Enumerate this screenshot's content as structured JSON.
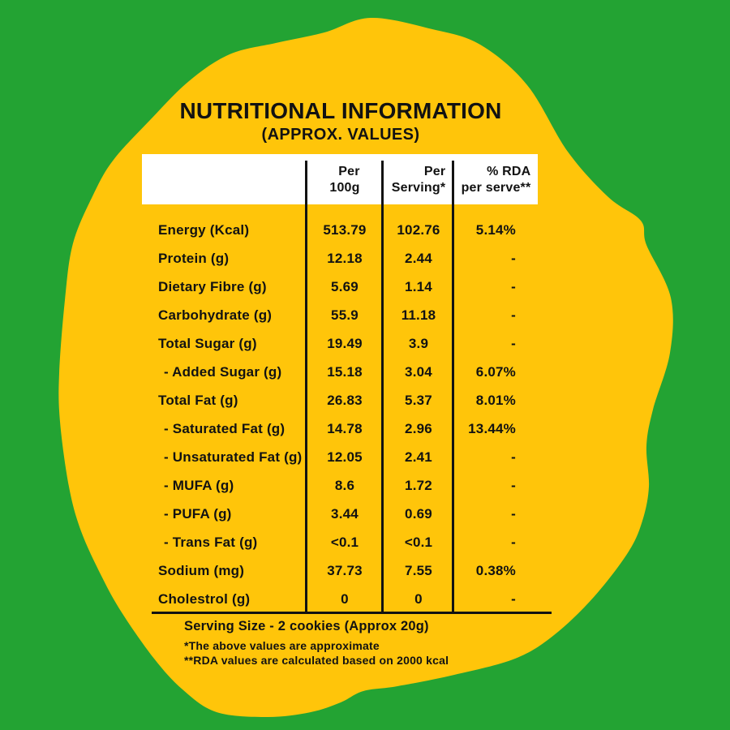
{
  "title": "NUTRITIONAL INFORMATION",
  "subtitle": "(APPROX. VALUES)",
  "table": {
    "header": [
      {
        "line1": "Per",
        "line2": "100g"
      },
      {
        "line1": "Per",
        "line2": "Serving*"
      },
      {
        "line1": "% RDA",
        "line2": "per serve**"
      }
    ],
    "rows": [
      {
        "label": "Energy (Kcal)",
        "per_100g": "513.79",
        "per_serving": "102.76",
        "rda": "5.14%",
        "sub": false
      },
      {
        "label": "Protein (g)",
        "per_100g": "12.18",
        "per_serving": "2.44",
        "rda": "-",
        "sub": false
      },
      {
        "label": "Dietary Fibre (g)",
        "per_100g": "5.69",
        "per_serving": "1.14",
        "rda": "-",
        "sub": false
      },
      {
        "label": "Carbohydrate (g)",
        "per_100g": "55.9",
        "per_serving": "11.18",
        "rda": "-",
        "sub": false
      },
      {
        "label": "Total Sugar (g)",
        "per_100g": "19.49",
        "per_serving": "3.9",
        "rda": "-",
        "sub": false
      },
      {
        "label": "- Added Sugar (g)",
        "per_100g": "15.18",
        "per_serving": "3.04",
        "rda": "6.07%",
        "sub": true
      },
      {
        "label": "Total Fat (g)",
        "per_100g": "26.83",
        "per_serving": "5.37",
        "rda": "8.01%",
        "sub": false
      },
      {
        "label": "- Saturated Fat (g)",
        "per_100g": "14.78",
        "per_serving": "2.96",
        "rda": "13.44%",
        "sub": true
      },
      {
        "label": "- Unsaturated Fat (g)",
        "per_100g": "12.05",
        "per_serving": "2.41",
        "rda": "-",
        "sub": true
      },
      {
        "label": "- MUFA (g)",
        "per_100g": "8.6",
        "per_serving": "1.72",
        "rda": "-",
        "sub": true
      },
      {
        "label": "- PUFA (g)",
        "per_100g": "3.44",
        "per_serving": "0.69",
        "rda": "-",
        "sub": true
      },
      {
        "label": "- Trans Fat (g)",
        "per_100g": "<0.1",
        "per_serving": "<0.1",
        "rda": "-",
        "sub": true
      },
      {
        "label": "Sodium (mg)",
        "per_100g": "37.73",
        "per_serving": "7.55",
        "rda": "0.38%",
        "sub": false
      },
      {
        "label": "Cholestrol (g)",
        "per_100g": "0",
        "per_serving": "0",
        "rda": "-",
        "sub": false
      }
    ]
  },
  "footer": {
    "serving_size": "Serving Size - 2 cookies (Approx 20g)",
    "note_approx": "*The above values are approximate",
    "note_rda": "**RDA values are calculated based on 2000 kcal"
  },
  "colors": {
    "background": "#23a333",
    "blob": "#ffc50a",
    "text": "#121212",
    "header_bg": "#ffffff"
  }
}
